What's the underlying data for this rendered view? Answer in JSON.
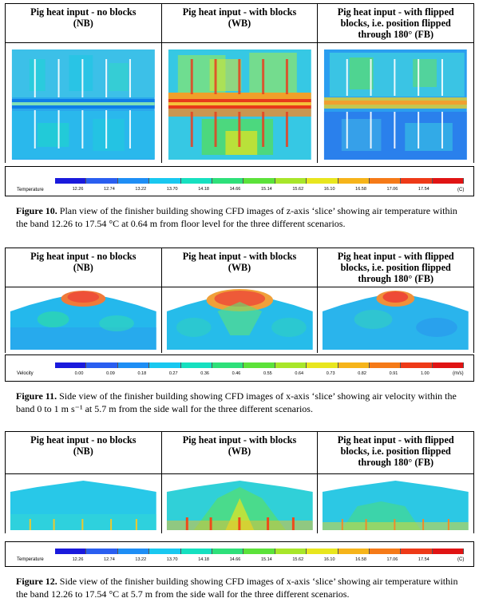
{
  "headers": [
    {
      "line1": "Pig heat input - no blocks",
      "line2": "(NB)",
      "line3": ""
    },
    {
      "line1": "Pig heat input - with blocks",
      "line2": "(WB)",
      "line3": ""
    },
    {
      "line1": "Pig heat input - with flipped",
      "line2": "blocks, i.e. position flipped",
      "line3": "through 180° (FB)"
    }
  ],
  "headers_fig10": [
    {
      "line1": "Pig heat input - no blocks",
      "line2": "(NB)",
      "line3": ""
    },
    {
      "line1": "Pig heat input - with blocks",
      "line2": "(WB)",
      "line3": ""
    },
    {
      "line1": "Pig heat input - with flipped",
      "line2": "blocks, i.e. position flipped",
      "line3": "through 180° (FB)"
    }
  ],
  "temperature_legend": {
    "label": "Temperature",
    "ticks": [
      "12.26",
      "12.74",
      "13.22",
      "13.70",
      "14.18",
      "14.66",
      "15.14",
      "15.62",
      "16.10",
      "16.58",
      "17.06",
      "17.54"
    ],
    "unit": "(C)",
    "colors": [
      "#1a1adc",
      "#2a5ef0",
      "#1e8ef5",
      "#19c8f0",
      "#16e0c0",
      "#2ee07a",
      "#5ce23a",
      "#a8e62a",
      "#e8e61e",
      "#f6b41a",
      "#f57a18",
      "#ee3a18",
      "#e01414"
    ]
  },
  "velocity_legend": {
    "label": "Velocity",
    "ticks": [
      "0.00",
      "0.09",
      "0.18",
      "0.27",
      "0.36",
      "0.46",
      "0.55",
      "0.64",
      "0.73",
      "0.82",
      "0.91",
      "1.00"
    ],
    "unit": "(m/s)",
    "colors": [
      "#1a1adc",
      "#2a5ef0",
      "#1e8ef5",
      "#19c8f0",
      "#16e0c0",
      "#2ee07a",
      "#5ce23a",
      "#a8e62a",
      "#e8e61e",
      "#f6b41a",
      "#f57a18",
      "#ee3a18",
      "#e01414"
    ]
  },
  "captions": {
    "fig10_label": "Figure 10.",
    "fig10_text": "Plan view of the finisher building showing CFD images of z-axis ‘slice’ showing air temperature within the band 12.26 to 17.54 °C at 0.64 m from floor level for the three different scenarios.",
    "fig11_label": "Figure 11.",
    "fig11_text": "Side view of the finisher building showing CFD images of x-axis ‘slice’ showing air velocity within the band 0 to 1 m s⁻¹ at 5.7 m from the side wall for the three different scenarios.",
    "fig12_label": "Figure 12.",
    "fig12_text": "Side view of the finisher building showing CFD images of x-axis ‘slice’ showing air temperature within the band 12.26 to 17.54 °C at 5.7 m from the side wall for the three different scenarios."
  }
}
